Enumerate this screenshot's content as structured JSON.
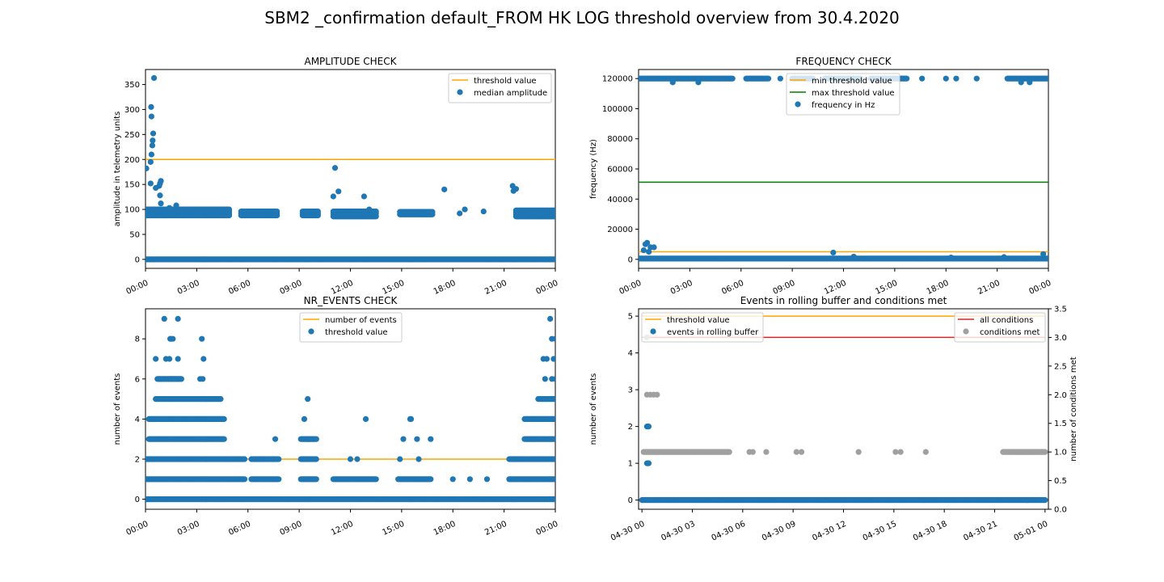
{
  "figure": {
    "suptitle": "SBM2 _confirmation default_FROM HK LOG threshold overview from 30.4.2020"
  },
  "colors": {
    "scatter": "#1f77b4",
    "threshold": "#ffa500",
    "max_threshold": "#008000",
    "all_conditions": "#d62728",
    "conditions_met": "#a0a0a0"
  },
  "chart_data": [
    {
      "type": "scatter",
      "title": "AMPLITUDE CHECK",
      "xlabel": "",
      "ylabel": "amplitude in telemetry units",
      "xlim": [
        0,
        24
      ],
      "ylim": [
        -18,
        380
      ],
      "yticks": [
        0,
        50,
        100,
        150,
        200,
        250,
        300,
        350
      ],
      "xtick_labels": [
        "00:00",
        "03:00",
        "06:00",
        "09:00",
        "12:00",
        "15:00",
        "18:00",
        "21:00",
        "00:00"
      ],
      "legend": {
        "placement": "upper right",
        "entries": [
          "threshold value",
          "median amplitude"
        ]
      },
      "lines": [
        {
          "name": "threshold value",
          "x": [
            0,
            24
          ],
          "y": [
            200,
            200
          ]
        }
      ],
      "series": [
        {
          "name": "median amplitude",
          "clusters": [
            {
              "x_range": [
                0,
                24
              ],
              "y": [
                0
              ]
            },
            {
              "x_range": [
                0.0,
                4.9
              ],
              "y": [
                88,
                92,
                96,
                100
              ]
            },
            {
              "x_range": [
                5.6,
                7.7
              ],
              "y": [
                88,
                92,
                96
              ]
            },
            {
              "x_range": [
                9.2,
                10.1
              ],
              "y": [
                88,
                92,
                96
              ]
            },
            {
              "x_range": [
                11.0,
                13.5
              ],
              "y": [
                86,
                92,
                96
              ]
            },
            {
              "x_range": [
                14.9,
                16.8
              ],
              "y": [
                90,
                95
              ]
            },
            {
              "x_range": [
                21.7,
                24.0
              ],
              "y": [
                86,
                90,
                94,
                98
              ]
            }
          ],
          "points": [
            [
              0.05,
              182
            ],
            [
              0.3,
              195
            ],
            [
              0.35,
              210
            ],
            [
              0.4,
              228
            ],
            [
              0.42,
              238
            ],
            [
              0.45,
              252
            ],
            [
              0.35,
              286
            ],
            [
              0.33,
              305
            ],
            [
              0.5,
              363
            ],
            [
              0.3,
              152
            ],
            [
              0.6,
              143
            ],
            [
              0.8,
              147
            ],
            [
              0.85,
              152
            ],
            [
              0.9,
              157
            ],
            [
              0.85,
              128
            ],
            [
              0.9,
              112
            ],
            [
              11.1,
              183
            ],
            [
              11.0,
              126
            ],
            [
              11.3,
              136
            ],
            [
              12.8,
              126
            ],
            [
              13.1,
              100
            ],
            [
              17.5,
              140
            ],
            [
              18.4,
              92
            ],
            [
              18.7,
              100
            ],
            [
              19.8,
              96
            ],
            [
              21.5,
              147
            ],
            [
              21.55,
              137
            ],
            [
              21.7,
              141
            ],
            [
              1.4,
              103
            ],
            [
              1.8,
              108
            ]
          ]
        }
      ]
    },
    {
      "type": "scatter",
      "title": "FREQUENCY CHECK",
      "xlabel": "",
      "ylabel": "frequency (Hz)",
      "xlim": [
        0,
        24
      ],
      "ylim": [
        -6000,
        126000
      ],
      "yticks": [
        0,
        20000,
        40000,
        60000,
        80000,
        100000,
        120000
      ],
      "xtick_labels": [
        "00:00",
        "03:00",
        "06:00",
        "09:00",
        "12:00",
        "15:00",
        "18:00",
        "21:00",
        "00:00"
      ],
      "legend": {
        "placement": "upper center",
        "entries": [
          "min threshold value",
          "max threshold value",
          "frequency in Hz"
        ]
      },
      "lines": [
        {
          "name": "min threshold value",
          "x": [
            0,
            24
          ],
          "y": [
            5000,
            5000
          ]
        },
        {
          "name": "max threshold value",
          "x": [
            0,
            24
          ],
          "y": [
            51200,
            51200
          ]
        }
      ],
      "series": [
        {
          "name": "frequency in Hz",
          "clusters": [
            {
              "x_range": [
                0,
                24
              ],
              "y": [
                500
              ]
            },
            {
              "x_range": [
                0,
                5.5
              ],
              "y": [
                120000
              ]
            },
            {
              "x_range": [
                6.3,
                7.6
              ],
              "y": [
                120000
              ]
            },
            {
              "x_range": [
                9.0,
                10.2
              ],
              "y": [
                120000
              ]
            },
            {
              "x_range": [
                10.9,
                13.0
              ],
              "y": [
                120000
              ]
            },
            {
              "x_range": [
                13.6,
                15.7
              ],
              "y": [
                120000
              ]
            },
            {
              "x_range": [
                21.6,
                24.0
              ],
              "y": [
                120000
              ]
            }
          ],
          "points": [
            [
              0.4,
              10000
            ],
            [
              0.5,
              11000
            ],
            [
              0.7,
              8000
            ],
            [
              0.9,
              8000
            ],
            [
              0.3,
              6000
            ],
            [
              0.6,
              5000
            ],
            [
              11.4,
              4500
            ],
            [
              12.6,
              1800
            ],
            [
              18.3,
              1200
            ],
            [
              21.4,
              1500
            ],
            [
              23.7,
              3500
            ],
            [
              2.0,
              117500
            ],
            [
              3.5,
              117500
            ],
            [
              22.4,
              117500
            ],
            [
              22.9,
              117500
            ],
            [
              16.6,
              120000
            ],
            [
              18.0,
              120000
            ],
            [
              18.6,
              120000
            ],
            [
              19.8,
              120000
            ],
            [
              8.3,
              120000
            ]
          ]
        }
      ]
    },
    {
      "type": "scatter",
      "title": "NR_EVENTS CHECK",
      "xlabel": "",
      "ylabel": "number of events",
      "xlim": [
        0,
        24
      ],
      "ylim": [
        -0.5,
        9.5
      ],
      "yticks": [
        0,
        2,
        4,
        6,
        8
      ],
      "xtick_labels": [
        "00:00",
        "03:00",
        "06:00",
        "09:00",
        "12:00",
        "15:00",
        "18:00",
        "21:00",
        "00:00"
      ],
      "legend": {
        "placement": "upper center",
        "entries": [
          "number of events",
          "threshold value"
        ]
      },
      "lines": [
        {
          "name": "number of events",
          "x": [
            0,
            24
          ],
          "y": [
            2,
            2
          ]
        }
      ],
      "series": [
        {
          "name": "threshold value",
          "clusters": [
            {
              "x_range": [
                0,
                24
              ],
              "y": [
                0
              ]
            },
            {
              "x_range": [
                0,
                5.8
              ],
              "y": [
                1,
                2
              ]
            },
            {
              "x_range": [
                0.2,
                4.6
              ],
              "y": [
                3,
                4
              ]
            },
            {
              "x_range": [
                0.6,
                4.4
              ],
              "y": [
                5
              ]
            },
            {
              "x_range": [
                0.7,
                2.1
              ],
              "y": [
                6
              ]
            },
            {
              "x_range": [
                6.2,
                7.8
              ],
              "y": [
                1,
                2
              ]
            },
            {
              "x_range": [
                9.1,
                10.0
              ],
              "y": [
                1,
                2,
                3
              ]
            },
            {
              "x_range": [
                11.0,
                13.5
              ],
              "y": [
                1
              ]
            },
            {
              "x_range": [
                14.8,
                16.7
              ],
              "y": [
                1
              ]
            },
            {
              "x_range": [
                21.3,
                24.0
              ],
              "y": [
                1,
                2
              ]
            },
            {
              "x_range": [
                22.2,
                24.0
              ],
              "y": [
                3,
                4
              ]
            },
            {
              "x_range": [
                23.0,
                24.0
              ],
              "y": [
                5
              ]
            }
          ],
          "points": [
            [
              1.1,
              9
            ],
            [
              1.9,
              9
            ],
            [
              1.45,
              8
            ],
            [
              1.5,
              8
            ],
            [
              1.6,
              8
            ],
            [
              3.3,
              8
            ],
            [
              0.6,
              7
            ],
            [
              1.2,
              7
            ],
            [
              1.4,
              7
            ],
            [
              1.9,
              7
            ],
            [
              3.4,
              7
            ],
            [
              3.2,
              6
            ],
            [
              3.35,
              6
            ],
            [
              1.5,
              6
            ],
            [
              1.7,
              6
            ],
            [
              9.5,
              5
            ],
            [
              9.3,
              4
            ],
            [
              12.9,
              4
            ],
            [
              15.5,
              4
            ],
            [
              15.55,
              4
            ],
            [
              9.6,
              3
            ],
            [
              15.1,
              3
            ],
            [
              15.9,
              3
            ],
            [
              16.7,
              3
            ],
            [
              7.6,
              3
            ],
            [
              12.0,
              2
            ],
            [
              12.4,
              2
            ],
            [
              14.9,
              2
            ],
            [
              16.0,
              2
            ],
            [
              18.0,
              1
            ],
            [
              19.0,
              1
            ],
            [
              20.0,
              1
            ],
            [
              23.7,
              9
            ],
            [
              23.8,
              8
            ],
            [
              24.0,
              8
            ],
            [
              23.3,
              7
            ],
            [
              23.5,
              7
            ],
            [
              23.9,
              7
            ],
            [
              24.0,
              7
            ],
            [
              23.4,
              6
            ],
            [
              23.8,
              6
            ],
            [
              24.0,
              6
            ]
          ]
        }
      ]
    },
    {
      "type": "scatter",
      "title": "Events in rolling buffer and conditions met",
      "xlabel": "",
      "ylabel": "number of events",
      "ylabel_right": "number of conditions met",
      "xlim": [
        -0.2,
        24.2
      ],
      "ylim": [
        -0.25,
        5.2
      ],
      "ylim_right": [
        0,
        3.5
      ],
      "yticks": [
        0,
        1,
        2,
        3,
        4,
        5
      ],
      "yticks_right": [
        "0.0",
        "0.5",
        "1.0",
        "1.5",
        "2.0",
        "2.5",
        "3.0",
        "3.5"
      ],
      "xtick_labels": [
        "04-30 00",
        "04-30 03",
        "04-30 06",
        "04-30 09",
        "04-30 12",
        "04-30 15",
        "04-30 18",
        "04-30 21",
        "05-01 00"
      ],
      "legend_left": {
        "placement": "upper left",
        "entries": [
          "threshold value",
          "events in rolling buffer"
        ]
      },
      "legend_right": {
        "placement": "upper right",
        "entries": [
          "all conditions",
          "conditions met"
        ]
      },
      "lines": [
        {
          "name": "threshold value",
          "axis": "left",
          "x": [
            0,
            24
          ],
          "y": [
            5,
            5
          ]
        },
        {
          "name": "all conditions",
          "axis": "right",
          "x": [
            0,
            24
          ],
          "y": [
            3,
            3
          ]
        }
      ],
      "series": [
        {
          "name": "events in rolling buffer",
          "axis": "left",
          "clusters": [
            {
              "x_range": [
                0,
                24
              ],
              "y": [
                0
              ]
            }
          ],
          "points": [
            [
              0.3,
              2
            ],
            [
              0.35,
              2
            ],
            [
              0.4,
              2
            ],
            [
              0.3,
              1
            ],
            [
              0.35,
              1
            ],
            [
              0.4,
              1
            ]
          ]
        },
        {
          "name": "conditions met",
          "axis": "right",
          "clusters": [
            {
              "x_range": [
                0.1,
                5.2
              ],
              "y": [
                1
              ]
            },
            {
              "x_range": [
                21.5,
                24.0
              ],
              "y": [
                1
              ]
            }
          ],
          "points": [
            [
              0.3,
              2
            ],
            [
              0.5,
              2
            ],
            [
              0.7,
              2
            ],
            [
              0.9,
              2
            ],
            [
              0.3,
              3
            ],
            [
              6.4,
              1
            ],
            [
              6.6,
              1
            ],
            [
              7.4,
              1
            ],
            [
              9.2,
              1
            ],
            [
              9.5,
              1
            ],
            [
              12.9,
              1
            ],
            [
              15.1,
              1
            ],
            [
              15.4,
              1
            ],
            [
              16.9,
              1
            ]
          ]
        }
      ]
    }
  ]
}
